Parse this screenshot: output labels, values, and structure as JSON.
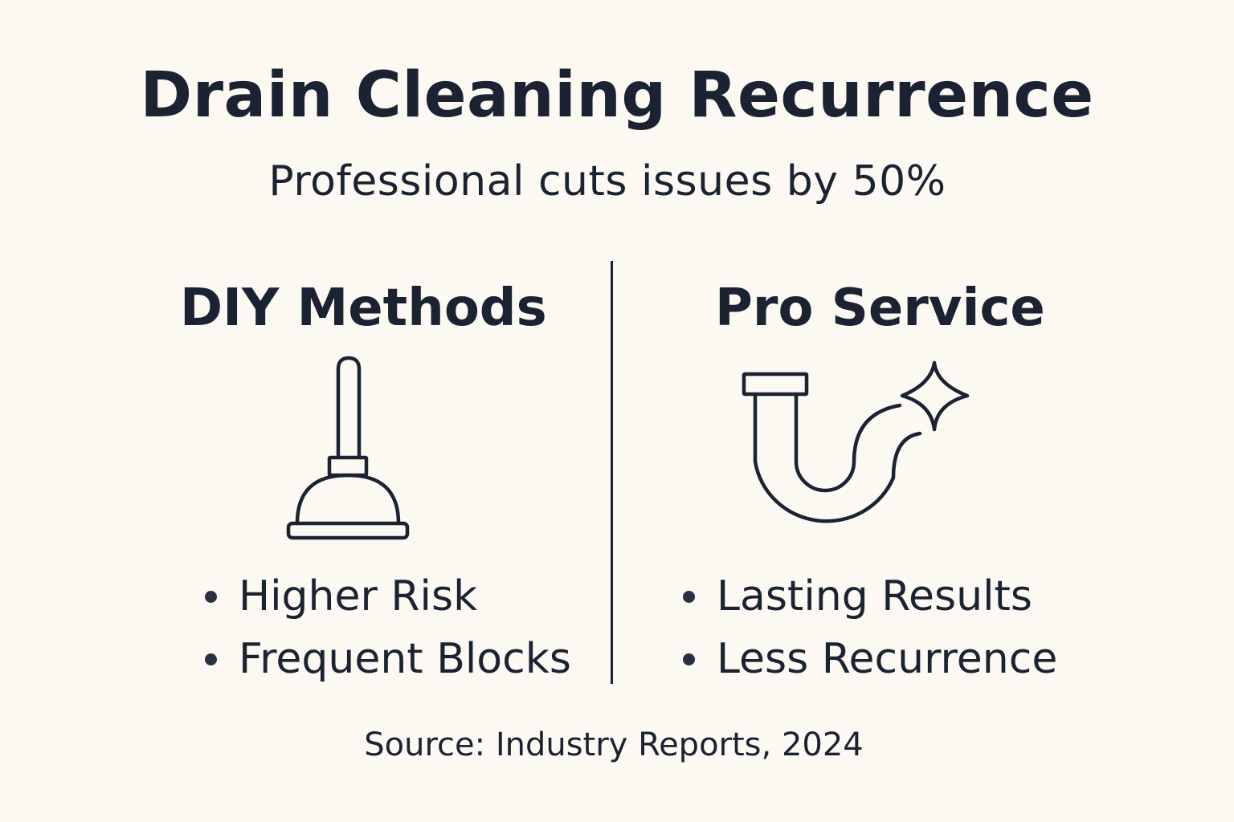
{
  "title": "Drain Cleaning Recurrence",
  "subtitle": "Professional cuts issues by 50%",
  "left_column": {
    "heading": "DIY Methods",
    "icon": "plunger-icon",
    "bullets": [
      "Higher Risk",
      "Frequent Blocks"
    ]
  },
  "right_column": {
    "heading": "Pro Service",
    "icon": "pipe-sparkle-icon",
    "bullets": [
      "Lasting Results",
      "Less Recurrence"
    ]
  },
  "source": "Source: Industry Reports, 2024",
  "colors": {
    "background": "#fcf9f3",
    "ink": "#1b2231"
  }
}
